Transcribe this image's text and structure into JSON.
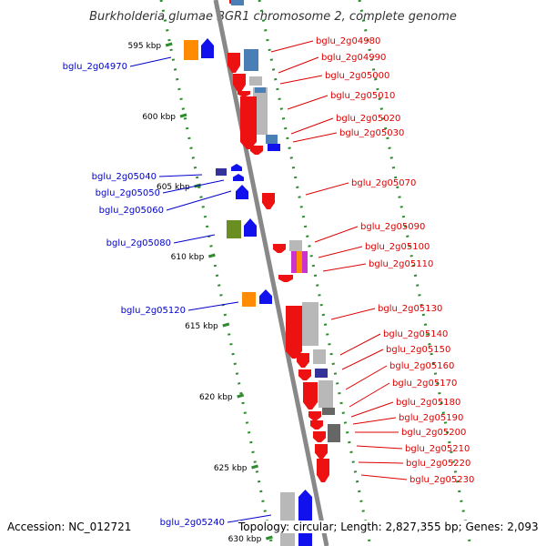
{
  "title": "Burkholderia glumae BGR1 chromosome 2, complete genome",
  "accession": "Accession: NC_012721",
  "topology": "Topology: circular; Length: 2,827,355 bp; Genes: 2,093",
  "colors": {
    "forward_label": "#0000cc",
    "reverse_label": "#dd0000",
    "backbone": "#888888",
    "dots": "#2e8b2e",
    "red_gene": "#ee1111",
    "blue_gene": "#1111ee",
    "orange_cog": "#ff8c00",
    "blue_cog": "#4a7fb5",
    "grey_cog": "#b8b8b8",
    "green_cog": "#6b8e23",
    "navy_cog": "#333399",
    "dark_cog": "#666666",
    "magenta_cog": "#cc33cc"
  },
  "scale_ticks": [
    "595 kbp",
    "600 kbp",
    "605 kbp",
    "610 kbp",
    "615 kbp",
    "620 kbp",
    "625 kbp",
    "630 kbp"
  ],
  "forward_genes": [
    "bglu_2g04970",
    "bglu_2g05040",
    "bglu_2g05050",
    "bglu_2g05060",
    "bglu_2g05080",
    "bglu_2g05120",
    "bglu_2g05240"
  ],
  "reverse_genes": [
    "bglu_2g04980",
    "bglu_2g04990",
    "bglu_2g05000",
    "bglu_2g05010",
    "bglu_2g05020",
    "bglu_2g05030",
    "bglu_2g05070",
    "bglu_2g05090",
    "bglu_2g05100",
    "bglu_2g05110",
    "bglu_2g05130",
    "bglu_2g05140",
    "bglu_2g05150",
    "bglu_2g05160",
    "bglu_2g05170",
    "bglu_2g05180",
    "bglu_2g05190",
    "bglu_2g05200",
    "bglu_2g05210",
    "bglu_2g05220",
    "bglu_2g05230"
  ]
}
